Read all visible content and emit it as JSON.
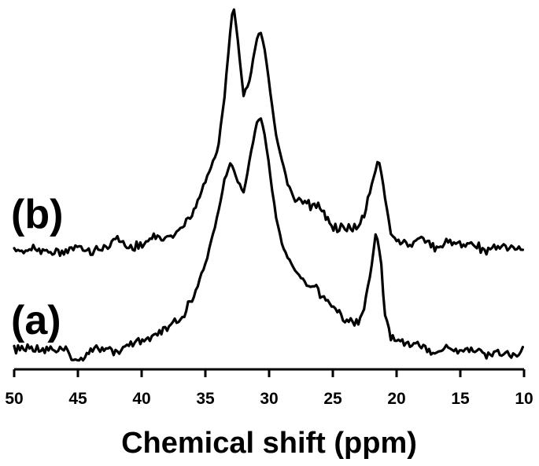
{
  "chart_data": {
    "type": "line",
    "title": "",
    "xlabel": "Chemical shift (ppm)",
    "ylabel": "",
    "xlim": [
      50,
      10
    ],
    "x_reversed": true,
    "grid": false,
    "xticks": [
      50,
      45,
      40,
      35,
      30,
      25,
      20,
      15,
      10
    ],
    "tick_labels": [
      "50",
      "45",
      "40",
      "35",
      "30",
      "25",
      "20",
      "15",
      "10"
    ],
    "series": [
      {
        "name": "(a)",
        "points": [
          [
            50,
            0.02
          ],
          [
            48,
            0.03
          ],
          [
            46,
            0.01
          ],
          [
            45,
            -0.04
          ],
          [
            44,
            0.02
          ],
          [
            43,
            0.02
          ],
          [
            42,
            0.01
          ],
          [
            41,
            0.03
          ],
          [
            40,
            0.06
          ],
          [
            39,
            0.07
          ],
          [
            38,
            0.12
          ],
          [
            37,
            0.16
          ],
          [
            36,
            0.26
          ],
          [
            35,
            0.42
          ],
          [
            34,
            0.66
          ],
          [
            33.5,
            0.82
          ],
          [
            33,
            0.9
          ],
          [
            32.5,
            0.82
          ],
          [
            32,
            0.76
          ],
          [
            31.5,
            0.92
          ],
          [
            31,
            1.08
          ],
          [
            30.7,
            1.12
          ],
          [
            30.3,
            1.02
          ],
          [
            30,
            0.88
          ],
          [
            29.5,
            0.66
          ],
          [
            29,
            0.52
          ],
          [
            28.5,
            0.45
          ],
          [
            28,
            0.4
          ],
          [
            27,
            0.32
          ],
          [
            26.3,
            0.32
          ],
          [
            26,
            0.27
          ],
          [
            25,
            0.23
          ],
          [
            24,
            0.16
          ],
          [
            23,
            0.15
          ],
          [
            22.5,
            0.22
          ],
          [
            22,
            0.4
          ],
          [
            21.6,
            0.58
          ],
          [
            21.2,
            0.42
          ],
          [
            21,
            0.22
          ],
          [
            20.5,
            0.08
          ],
          [
            20,
            0.06
          ],
          [
            18,
            0.04
          ],
          [
            17,
            0.0
          ],
          [
            16,
            0.03
          ],
          [
            15,
            0.01
          ],
          [
            14,
            0.02
          ],
          [
            13,
            0.0
          ],
          [
            12,
            0.01
          ],
          [
            11,
            -0.01
          ],
          [
            10,
            0.02
          ]
        ]
      },
      {
        "name": "(b)",
        "points": [
          [
            50,
            0.0
          ],
          [
            48,
            0.01
          ],
          [
            46,
            0.0
          ],
          [
            45,
            0.02
          ],
          [
            44,
            0.0
          ],
          [
            43,
            0.02
          ],
          [
            42,
            0.06
          ],
          [
            41,
            0.02
          ],
          [
            40,
            0.03
          ],
          [
            39,
            0.06
          ],
          [
            38,
            0.06
          ],
          [
            37,
            0.1
          ],
          [
            36,
            0.18
          ],
          [
            35,
            0.32
          ],
          [
            34,
            0.48
          ],
          [
            33.5,
            0.72
          ],
          [
            33,
            1.05
          ],
          [
            32.8,
            1.15
          ],
          [
            32.5,
            1.0
          ],
          [
            32,
            0.72
          ],
          [
            31.5,
            0.8
          ],
          [
            31,
            0.98
          ],
          [
            30.7,
            1.02
          ],
          [
            30.3,
            0.92
          ],
          [
            30,
            0.78
          ],
          [
            29.5,
            0.55
          ],
          [
            29,
            0.42
          ],
          [
            28.5,
            0.3
          ],
          [
            28,
            0.24
          ],
          [
            27,
            0.22
          ],
          [
            26,
            0.2
          ],
          [
            25,
            0.12
          ],
          [
            24,
            0.1
          ],
          [
            23.3,
            0.12
          ],
          [
            23,
            0.1
          ],
          [
            22.5,
            0.18
          ],
          [
            22,
            0.3
          ],
          [
            21.4,
            0.43
          ],
          [
            21,
            0.3
          ],
          [
            20.5,
            0.1
          ],
          [
            20,
            0.05
          ],
          [
            19,
            0.03
          ],
          [
            18,
            0.06
          ],
          [
            17,
            0.02
          ],
          [
            16,
            0.05
          ],
          [
            15,
            0.03
          ],
          [
            14,
            0.04
          ],
          [
            13,
            0.0
          ],
          [
            12,
            0.02
          ],
          [
            11,
            0.01
          ],
          [
            10,
            0.01
          ]
        ]
      }
    ]
  }
}
